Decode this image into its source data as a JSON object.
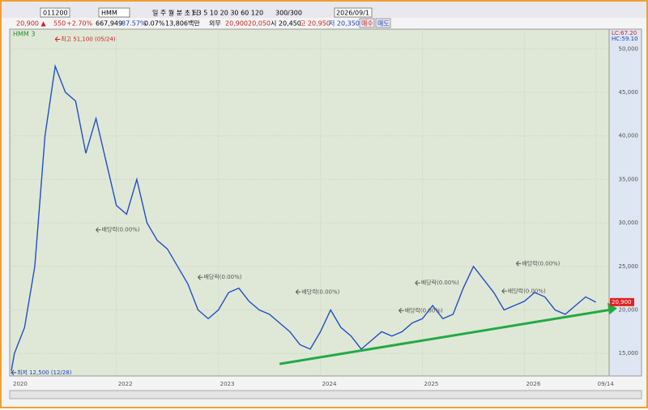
{
  "toolbar": {
    "code": "011200",
    "name": "HMM",
    "periods": "일 주 월 분 초 틱",
    "intervals": "1 3 5 10 20 30 60 120",
    "count": "300",
    "count_total": "/300",
    "date": "2026/09/1"
  },
  "quote": {
    "price": "20,900 ▲",
    "change": "550",
    "rate": "+2.70%",
    "volume": "667,949",
    "vol_ratio": "87.57%",
    "turnover": "0.07%",
    "amount": "13,806백만",
    "foreign": "외무",
    "q1": "20,900",
    "q2": "20,050",
    "open": "시 20,450",
    "high": "고 20,950",
    "low": "저 20,350",
    "buy": "매수",
    "sell": "매도"
  },
  "chart_data": {
    "type": "line",
    "legend": "HMM  3",
    "lc": "LC:67.20",
    "hc": "HC:59.10",
    "last_label": "20,900",
    "x": [
      2020.97,
      2021.0,
      2021.1,
      2021.2,
      2021.3,
      2021.4,
      2021.5,
      2021.6,
      2021.7,
      2021.8,
      2021.9,
      2022.0,
      2022.1,
      2022.2,
      2022.3,
      2022.4,
      2022.5,
      2022.6,
      2022.7,
      2022.8,
      2022.9,
      2023.0,
      2023.1,
      2023.2,
      2023.3,
      2023.4,
      2023.5,
      2023.6,
      2023.7,
      2023.8,
      2023.9,
      2024.0,
      2024.1,
      2024.2,
      2024.3,
      2024.4,
      2024.5,
      2024.6,
      2024.7,
      2024.8,
      2024.9,
      2025.0,
      2025.1,
      2025.2,
      2025.3,
      2025.4,
      2025.5,
      2025.6,
      2025.7,
      2025.8,
      2025.9,
      2026.0,
      2026.1,
      2026.2,
      2026.3,
      2026.4,
      2026.5,
      2026.6,
      2026.7
    ],
    "series": [
      {
        "name": "HMM",
        "color": "#1f4fc8",
        "values": [
          13000,
          15000,
          18000,
          25000,
          40000,
          48000,
          45000,
          44000,
          38000,
          42000,
          37000,
          32000,
          31000,
          35000,
          30000,
          28000,
          27000,
          25000,
          23000,
          20000,
          19000,
          20000,
          22000,
          22500,
          21000,
          20000,
          19500,
          18500,
          17500,
          16000,
          15500,
          17500,
          20000,
          18000,
          17000,
          15500,
          16500,
          17500,
          17000,
          17500,
          18500,
          19000,
          20500,
          19000,
          19500,
          22500,
          25000,
          23500,
          22000,
          20000,
          20500,
          21000,
          22000,
          21500,
          20000,
          19500,
          20500,
          21500,
          20900
        ]
      }
    ],
    "trendline": {
      "color": "#22aa44",
      "x": [
        2023.6,
        2026.83
      ],
      "values": [
        13800,
        20000
      ]
    },
    "annotations": [
      {
        "text": "최고 51,100 (05/24)",
        "x": 2021.4,
        "y": 51100,
        "color": "#d02020"
      },
      {
        "text": "최저 12,500 (12/28)",
        "x": 2020.97,
        "y": 12800,
        "color": "#2040c0"
      },
      {
        "text": "배당락(0.00%)",
        "x": 2021.8,
        "y": 29200,
        "color": "#555"
      },
      {
        "text": "배당락(0.00%)",
        "x": 2022.8,
        "y": 23750,
        "color": "#555"
      },
      {
        "text": "배당락(0.00%)",
        "x": 2023.76,
        "y": 22070,
        "color": "#555"
      },
      {
        "text": "배당락(0.00%)",
        "x": 2024.93,
        "y": 23100,
        "color": "#555"
      },
      {
        "text": "배당락(0.00%)",
        "x": 2024.77,
        "y": 19930,
        "color": "#555"
      },
      {
        "text": "배당락(0.00%)",
        "x": 2025.78,
        "y": 22160,
        "color": "#555"
      },
      {
        "text": "배당락(0.00%)",
        "x": 2025.92,
        "y": 25330,
        "color": "#555"
      }
    ],
    "xlim": [
      2020.97,
      2026.83
    ],
    "xticks": [
      {
        "value": 2020.97,
        "label": "2020"
      },
      2022,
      2023,
      2024,
      2025,
      2026,
      {
        "value": 2026.7,
        "label": "09/14"
      }
    ],
    "ylim": [
      12600,
      51700
    ],
    "yticks": [
      {
        "value": 15000,
        "label": "15,000"
      },
      {
        "value": 20000,
        "label": "20,000"
      },
      {
        "value": 25000,
        "label": "25,000"
      },
      {
        "value": 30000,
        "label": "30,000"
      },
      {
        "value": 35000,
        "label": "35,000"
      },
      {
        "value": 40000,
        "label": "40,000"
      },
      {
        "value": 45000,
        "label": "45,000"
      },
      {
        "value": 50000,
        "label": "50,000"
      }
    ],
    "grid": true
  }
}
